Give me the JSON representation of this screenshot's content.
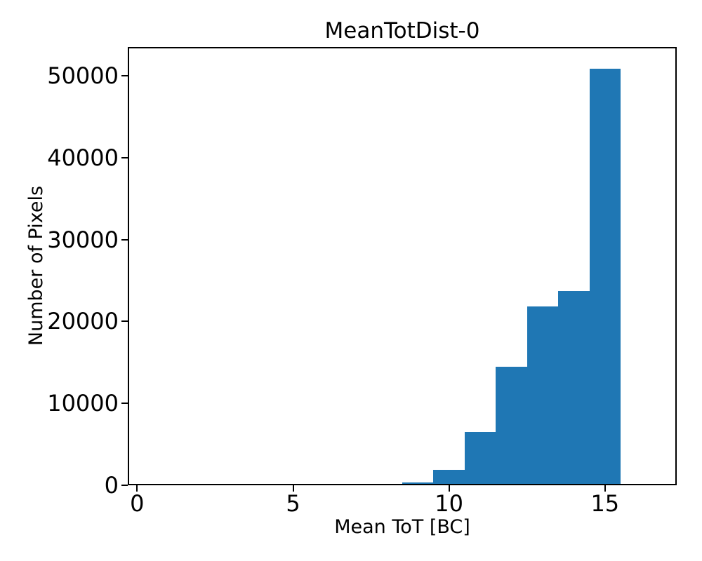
{
  "chart_data": {
    "type": "bar",
    "subtype": "histogram",
    "title": "MeanTotDist-0",
    "xlabel": "Mean ToT [BC]",
    "ylabel": "Number of Pixels",
    "bar_color": "#1f77b4",
    "axis_color": "#000000",
    "background_color": "#ffffff",
    "bin_edges": [
      8.5,
      9.5,
      10.5,
      11.5,
      12.5,
      13.5,
      14.5,
      15.5
    ],
    "counts": [
      340,
      1880,
      6470,
      14480,
      21840,
      23730,
      50880
    ],
    "xlim": [
      -0.3,
      17.3
    ],
    "ylim": [
      0,
      53500
    ],
    "xticks": [
      0,
      5,
      10,
      15
    ],
    "yticks": [
      0,
      10000,
      20000,
      30000,
      40000,
      50000
    ],
    "grid": false,
    "legend": null
  }
}
